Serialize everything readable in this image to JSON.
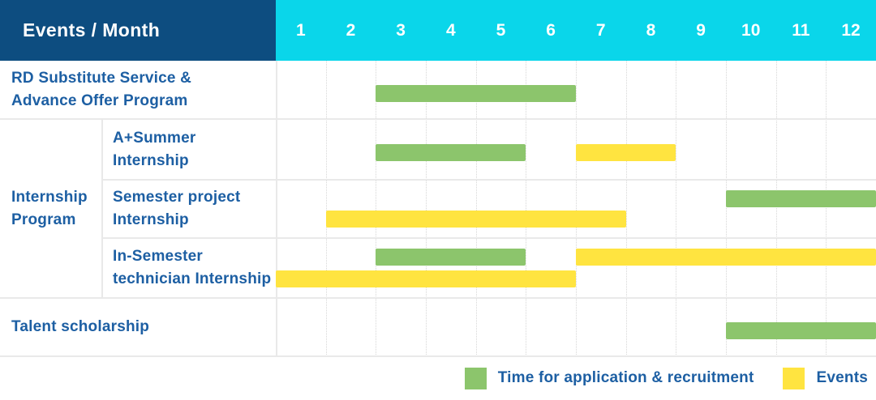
{
  "header": {
    "label": "Events / Month",
    "months": [
      "1",
      "2",
      "3",
      "4",
      "5",
      "6",
      "7",
      "8",
      "9",
      "10",
      "11",
      "12"
    ]
  },
  "legend": [
    {
      "key": "application",
      "label": "Time for application & recruitment",
      "color": "#8cc56c"
    },
    {
      "key": "events",
      "label": "Events",
      "color": "#ffe440"
    }
  ],
  "colors": {
    "header_bg": "#0d4d80",
    "months_bg": "#0ad6ea",
    "application_green": "#8cc56c",
    "events_yellow": "#ffe440",
    "label_text": "#1d5fa3",
    "header_text": "#ffffff"
  },
  "chart_data": {
    "type": "gantt",
    "title": "Events / Month",
    "x_axis": {
      "unit": "month",
      "range": [
        1,
        12
      ],
      "ticks": [
        "1",
        "2",
        "3",
        "4",
        "5",
        "6",
        "7",
        "8",
        "9",
        "10",
        "11",
        "12"
      ]
    },
    "legend": [
      {
        "series": "application",
        "label": "Time for application & recruitment"
      },
      {
        "series": "events",
        "label": "Events"
      }
    ],
    "group_label_lines": [
      "Internship",
      "Program"
    ],
    "rows": [
      {
        "id": "rd-substitute-service",
        "group": null,
        "label_lines": [
          "RD Substitute Service &",
          "Advance Offer Program"
        ],
        "bars": [
          {
            "series": "application",
            "start_month": 3,
            "end_month": 6,
            "lane": "center"
          }
        ]
      },
      {
        "id": "a-plus-summer-internship",
        "group": "Internship Program",
        "label_lines": [
          "A+Summer",
          "Internship"
        ],
        "bars": [
          {
            "series": "application",
            "start_month": 3,
            "end_month": 5,
            "lane": "center"
          },
          {
            "series": "events",
            "start_month": 7,
            "end_month": 8,
            "lane": "center"
          }
        ]
      },
      {
        "id": "semester-project-internship",
        "group": "Internship Program",
        "label_lines": [
          "Semester project",
          "Internship"
        ],
        "bars": [
          {
            "series": "application",
            "start_month": 10,
            "end_month": 12,
            "lane": "upper"
          },
          {
            "series": "events",
            "start_month": 2,
            "end_month": 7,
            "lane": "lower"
          }
        ]
      },
      {
        "id": "in-semester-technician-internship",
        "group": "Internship Program",
        "label_lines": [
          "In-Semester",
          "technician Internship"
        ],
        "bars": [
          {
            "series": "application",
            "start_month": 3,
            "end_month": 5,
            "lane": "upper"
          },
          {
            "series": "events",
            "start_month": 7,
            "end_month": 12,
            "lane": "upper"
          },
          {
            "series": "events",
            "start_month": 1,
            "end_month": 6,
            "lane": "lower"
          }
        ]
      },
      {
        "id": "talent-scholarship",
        "group": null,
        "label_lines": [
          "Talent scholarship"
        ],
        "bars": [
          {
            "series": "application",
            "start_month": 10,
            "end_month": 12,
            "lane": "center"
          }
        ]
      }
    ]
  }
}
